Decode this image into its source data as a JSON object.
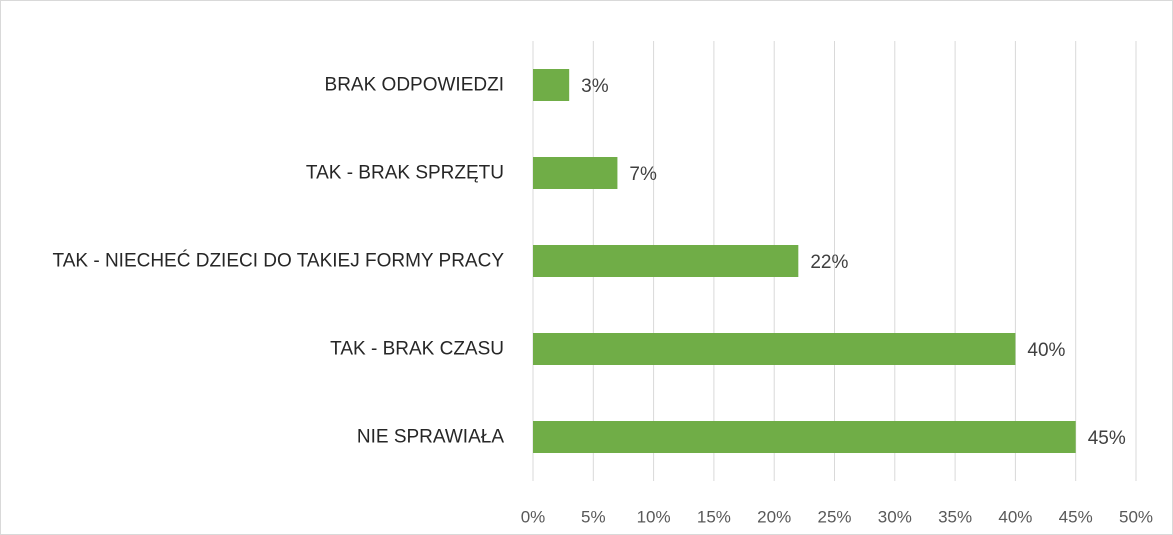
{
  "chart_data": {
    "type": "bar",
    "orientation": "horizontal",
    "categories": [
      "BRAK ODPOWIEDZI",
      "TAK - BRAK SPRZĘTU",
      "TAK - NIECHEĆ DZIECI DO TAKIEJ FORMY PRACY",
      "TAK - BRAK CZASU",
      "NIE SPRAWIAŁA"
    ],
    "values": [
      3,
      7,
      22,
      40,
      45
    ],
    "value_labels": [
      "3%",
      "7%",
      "22%",
      "40%",
      "45%"
    ],
    "color": "#70ad47",
    "xlim": [
      0,
      50
    ],
    "xticks": [
      {
        "value": 0,
        "label": "0%"
      },
      {
        "value": 5,
        "label": "5%"
      },
      {
        "value": 10,
        "label": "10%"
      },
      {
        "value": 15,
        "label": "15%"
      },
      {
        "value": 20,
        "label": "20%"
      },
      {
        "value": 25,
        "label": "25%"
      },
      {
        "value": 30,
        "label": "30%"
      },
      {
        "value": 35,
        "label": "35%"
      },
      {
        "value": 40,
        "label": "40%"
      },
      {
        "value": 45,
        "label": "45%"
      },
      {
        "value": 50,
        "label": "50%"
      }
    ],
    "grid": true
  }
}
